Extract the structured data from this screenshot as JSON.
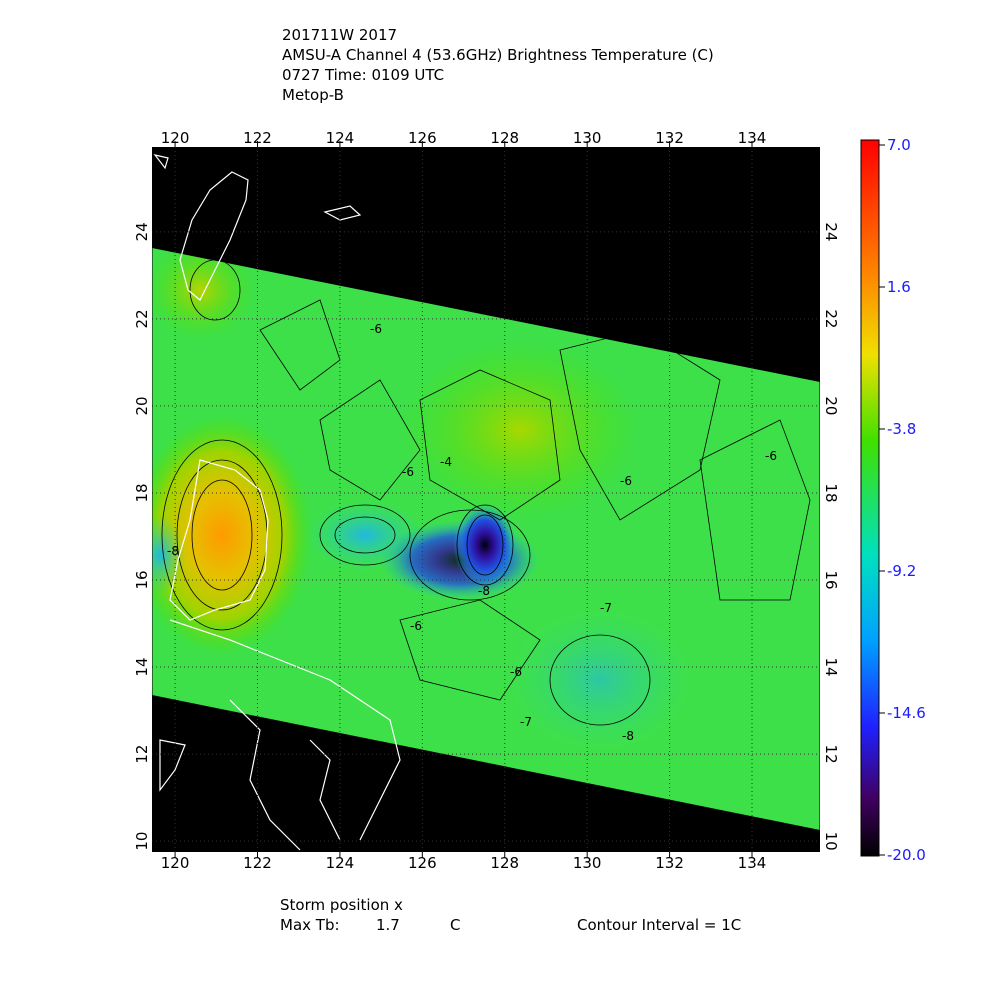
{
  "header": {
    "lines": [
      "201711W 2017",
      "AMSU-A Channel 4 (53.6GHz) Brightness Temperature (C)",
      "0727 Time: 0109 UTC",
      "Metop-B"
    ]
  },
  "map": {
    "lon_ticks": [
      120,
      122,
      124,
      126,
      128,
      130,
      132,
      134
    ],
    "lat_ticks": [
      10,
      12,
      14,
      16,
      18,
      20,
      22,
      24
    ],
    "contour_labels": [
      "-6",
      "-6",
      "-6",
      "-6",
      "-6",
      "-6",
      "-7",
      "-7",
      "-8",
      "-8",
      "-8",
      "-4"
    ]
  },
  "colorbar": {
    "range": [
      -20,
      7
    ],
    "ticks": [
      {
        "value": 7,
        "label": "7.0"
      },
      1.6,
      -3.8,
      -9.2,
      -14.6,
      {
        "value": -20,
        "label": "-20.0"
      }
    ]
  },
  "footer": {
    "storm_position": "Storm position x",
    "max_tb_label": "Max Tb:",
    "max_tb_value": "1.7",
    "max_tb_unit": "C",
    "contour_interval": "Contour Interval = 1C"
  }
}
